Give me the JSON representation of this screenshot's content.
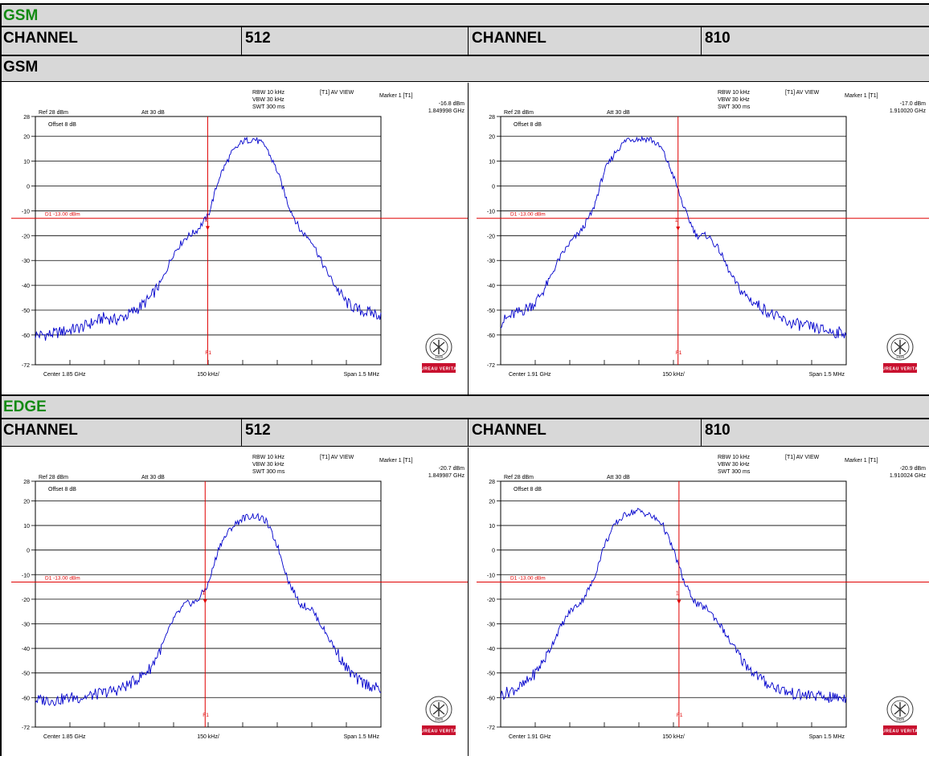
{
  "sections": [
    {
      "title": "GSM",
      "left_label": "CHANNEL",
      "left_value": "512",
      "right_label": "CHANNEL",
      "right_value": "810",
      "sub_title": "GSM"
    },
    {
      "title": "EDGE",
      "left_label": "CHANNEL",
      "left_value": "512",
      "right_label": "CHANNEL",
      "right_value": "810"
    }
  ],
  "colors": {
    "trace": "#0000cc",
    "limit_line": "#e00000",
    "header_bg": "#d8d8d8",
    "title_green": "#138a13",
    "logo_red": "#c8102e"
  },
  "logo": {
    "text": "BUREAU VERITAS",
    "year": "1828"
  },
  "chart_data": [
    {
      "type": "line",
      "title": "",
      "settings": {
        "rbw": "RBW 10 kHz",
        "vbw": "VBW 30 kHz",
        "swt": "SWT 300 ms",
        "view": "[T1] AV VIEW",
        "ref": "Ref 28 dBm",
        "att": "Att  30 dB",
        "offset": "Offset 8 dB"
      },
      "marker": {
        "label": "Marker 1 [T1]",
        "level": "-16.8 dBm",
        "freq": "1.849998 GHz",
        "x": 1.849998,
        "y": -16.8
      },
      "limit_line": {
        "label": "D1  -13.00  dBm",
        "y": -13
      },
      "f1_label": "F1",
      "center_label": "Center 1.85 GHz",
      "div_label": "150 kHz/",
      "span_label": "Span 1.5 MHz",
      "x_range": [
        1.84925,
        1.85075
      ],
      "ylim": [
        -72,
        28
      ],
      "yticks": [
        28,
        20,
        10,
        0,
        -10,
        -20,
        -30,
        -40,
        -50,
        -60,
        -72
      ],
      "ytick_labels": [
        "28",
        "20",
        "10",
        "0",
        "-10",
        "-20",
        "-30",
        "-40",
        "-50",
        "-60",
        "-72"
      ],
      "x": [
        1.84925,
        1.8493,
        1.84935,
        1.8494,
        1.84945,
        1.8495,
        1.84955,
        1.8496,
        1.84965,
        1.8497,
        1.84975,
        1.8498,
        1.84985,
        1.8499,
        1.84995,
        1.85,
        1.85005,
        1.8501,
        1.85015,
        1.8502,
        1.85025,
        1.8503,
        1.85035,
        1.8504,
        1.85045,
        1.8505,
        1.85055,
        1.8506,
        1.85065,
        1.8507,
        1.85075
      ],
      "y": [
        -60,
        -60,
        -59,
        -58,
        -57,
        -55,
        -53,
        -54,
        -52,
        -49,
        -45,
        -38,
        -27,
        -21,
        -18,
        -12,
        4,
        13,
        18,
        19,
        16,
        6,
        -8,
        -18,
        -22,
        -32,
        -40,
        -47,
        -50,
        -51,
        -52
      ]
    },
    {
      "type": "line",
      "title": "",
      "settings": {
        "rbw": "RBW 10 kHz",
        "vbw": "VBW 30 kHz",
        "swt": "SWT 300 ms",
        "view": "[T1] AV VIEW",
        "ref": "Ref 28 dBm",
        "att": "Att  30 dB",
        "offset": "Offset 8 dB"
      },
      "marker": {
        "label": "Marker 1 [T1]",
        "level": "-17.0 dBm",
        "freq": "1.910020 GHz",
        "x": 1.91002,
        "y": -17.0
      },
      "limit_line": {
        "label": "D1  -13.00  dBm",
        "y": -13
      },
      "f1_label": "F1",
      "center_label": "Center 1.91 GHz",
      "div_label": "150 kHz/",
      "span_label": "Span 1.5 MHz",
      "x_range": [
        1.90925,
        1.91075
      ],
      "ylim": [
        -72,
        28
      ],
      "yticks": [
        28,
        20,
        10,
        0,
        -10,
        -20,
        -30,
        -40,
        -50,
        -60,
        -72
      ],
      "ytick_labels": [
        "28",
        "20",
        "10",
        "0",
        "-10",
        "-20",
        "-30",
        "-40",
        "-50",
        "-60",
        "-72"
      ],
      "x": [
        1.90925,
        1.9093,
        1.90935,
        1.9094,
        1.90945,
        1.9095,
        1.90955,
        1.9096,
        1.90965,
        1.9097,
        1.90975,
        1.9098,
        1.90985,
        1.9099,
        1.90995,
        1.91,
        1.91005,
        1.9101,
        1.91015,
        1.9102,
        1.91025,
        1.9103,
        1.91035,
        1.9104,
        1.91045,
        1.9105,
        1.91055,
        1.9106,
        1.91065,
        1.9107,
        1.91075
      ],
      "y": [
        -55,
        -52,
        -50,
        -47,
        -40,
        -30,
        -23,
        -18,
        -10,
        6,
        14,
        19,
        19,
        19,
        15,
        4,
        -10,
        -20,
        -20,
        -26,
        -36,
        -43,
        -47,
        -50,
        -53,
        -55,
        -56,
        -57,
        -58,
        -59,
        -59
      ]
    },
    {
      "type": "line",
      "title": "",
      "settings": {
        "rbw": "RBW 10 kHz",
        "vbw": "VBW 30 kHz",
        "swt": "SWT 300 ms",
        "view": "[T1] AV VIEW",
        "ref": "Ref 28 dBm",
        "att": "Att  30 dB",
        "offset": "Offset 8 dB"
      },
      "marker": {
        "label": "Marker 1 [T1]",
        "level": "-20.7 dBm",
        "freq": "1.849987 GHz",
        "x": 1.849987,
        "y": -20.7
      },
      "limit_line": {
        "label": "D1  -13.00  dBm",
        "y": -13
      },
      "f1_label": "F1",
      "center_label": "Center 1.85 GHz",
      "div_label": "150 kHz/",
      "span_label": "Span 1.5 MHz",
      "x_range": [
        1.84925,
        1.85075
      ],
      "ylim": [
        -72,
        28
      ],
      "yticks": [
        28,
        20,
        10,
        0,
        -10,
        -20,
        -30,
        -40,
        -50,
        -60,
        -72
      ],
      "ytick_labels": [
        "28",
        "20",
        "10",
        "0",
        "-10",
        "-20",
        "-30",
        "-40",
        "-50",
        "-60",
        "-72"
      ],
      "x": [
        1.84925,
        1.8493,
        1.84935,
        1.8494,
        1.84945,
        1.8495,
        1.84955,
        1.8496,
        1.84965,
        1.8497,
        1.84975,
        1.8498,
        1.84985,
        1.8499,
        1.84995,
        1.85,
        1.85005,
        1.8501,
        1.85015,
        1.8502,
        1.85025,
        1.8503,
        1.85035,
        1.8504,
        1.85045,
        1.8505,
        1.85055,
        1.8506,
        1.85065,
        1.8507,
        1.85075
      ],
      "y": [
        -61,
        -61,
        -61,
        -60,
        -60,
        -59,
        -58,
        -57,
        -55,
        -52,
        -48,
        -39,
        -28,
        -22,
        -21,
        -14,
        2,
        9,
        13,
        14,
        12,
        2,
        -13,
        -22,
        -24,
        -32,
        -40,
        -48,
        -53,
        -55,
        -57
      ]
    },
    {
      "type": "line",
      "title": "",
      "settings": {
        "rbw": "RBW 10 kHz",
        "vbw": "VBW 30 kHz",
        "swt": "SWT 300 ms",
        "view": "[T1] AV VIEW",
        "ref": "Ref 28 dBm",
        "att": "Att  30 dB",
        "offset": "Offset 8 dB"
      },
      "marker": {
        "label": "Marker 1 [T1]",
        "level": "-20.9 dBm",
        "freq": "1.910024 GHz",
        "x": 1.910024,
        "y": -20.9
      },
      "limit_line": {
        "label": "D1  -13.00  dBm",
        "y": -13
      },
      "f1_label": "F1",
      "center_label": "Center 1.91 GHz",
      "div_label": "150 kHz/",
      "span_label": "Span 1.5 MHz",
      "x_range": [
        1.90925,
        1.91075
      ],
      "ylim": [
        -72,
        28
      ],
      "yticks": [
        28,
        20,
        10,
        0,
        -10,
        -20,
        -30,
        -40,
        -50,
        -60,
        -72
      ],
      "ytick_labels": [
        "28",
        "20",
        "10",
        "0",
        "-10",
        "-20",
        "-30",
        "-40",
        "-50",
        "-60",
        "-72"
      ],
      "x": [
        1.90925,
        1.9093,
        1.90935,
        1.9094,
        1.90945,
        1.9095,
        1.90955,
        1.9096,
        1.90965,
        1.9097,
        1.90975,
        1.9098,
        1.90985,
        1.9099,
        1.90995,
        1.91,
        1.91005,
        1.9101,
        1.91015,
        1.9102,
        1.91025,
        1.9103,
        1.91035,
        1.9104,
        1.91045,
        1.9105,
        1.91055,
        1.9106,
        1.91065,
        1.9107,
        1.91075
      ],
      "y": [
        -59,
        -57,
        -55,
        -50,
        -43,
        -33,
        -25,
        -21,
        -13,
        2,
        11,
        15,
        16,
        14,
        11,
        0,
        -14,
        -22,
        -24,
        -30,
        -38,
        -45,
        -50,
        -54,
        -56,
        -58,
        -59,
        -59,
        -60,
        -60,
        -60
      ]
    }
  ]
}
